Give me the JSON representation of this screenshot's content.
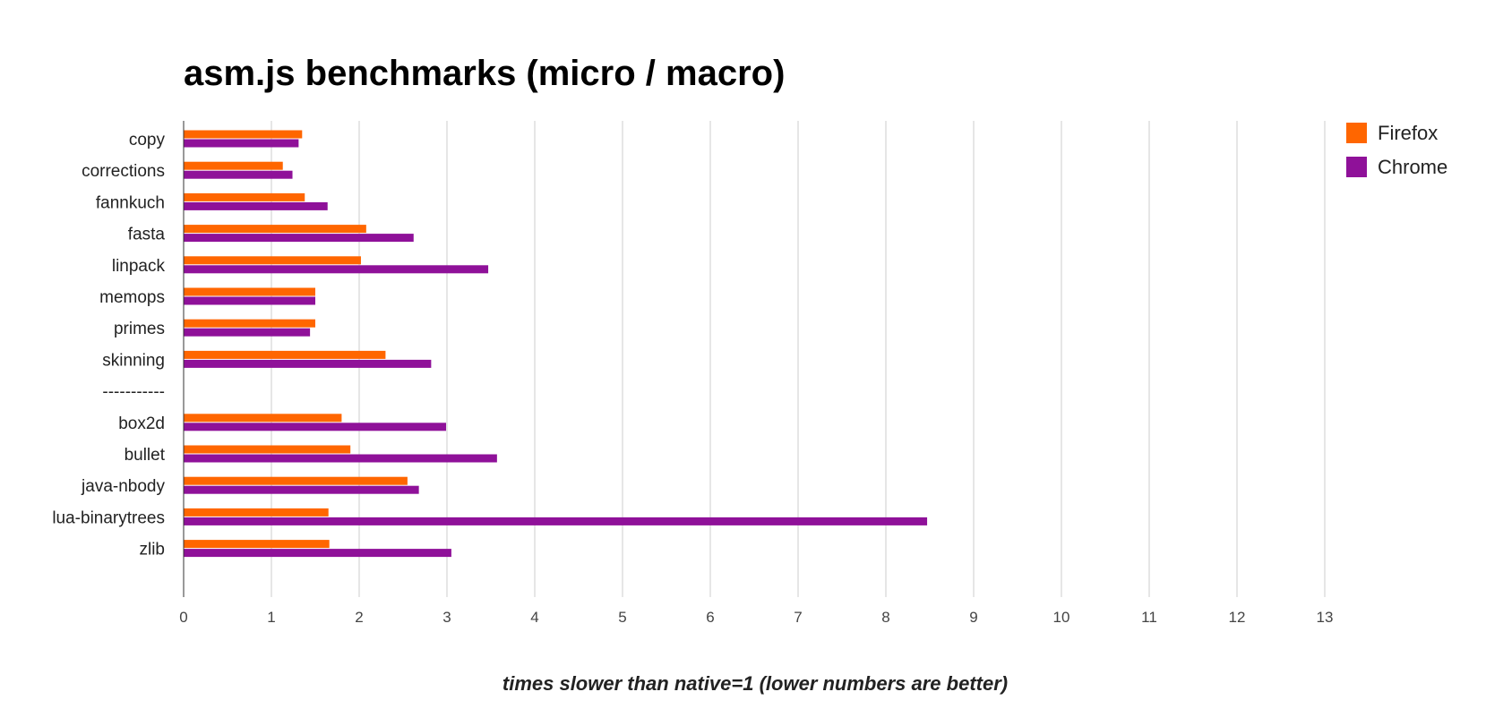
{
  "chart_data": {
    "type": "bar",
    "orientation": "horizontal",
    "title": "asm.js benchmarks (micro / macro)",
    "xlabel": "times slower than native=1 (lower numbers are better)",
    "ylabel": "",
    "xlim": [
      0,
      13
    ],
    "x_ticks": [
      0,
      1,
      2,
      3,
      4,
      5,
      6,
      7,
      8,
      9,
      10,
      11,
      12,
      13
    ],
    "grid": true,
    "legend_position": "top-right",
    "categories": [
      "copy",
      "corrections",
      "fannkuch",
      "fasta",
      "linpack",
      "memops",
      "primes",
      "skinning",
      "-----------",
      "box2d",
      "bullet",
      "java-nbody",
      "lua-binarytrees",
      "zlib"
    ],
    "series": [
      {
        "name": "Firefox",
        "color": "#ff6600",
        "values": [
          1.35,
          1.13,
          1.38,
          2.08,
          2.02,
          1.5,
          1.5,
          2.3,
          null,
          1.8,
          1.9,
          2.55,
          1.65,
          1.66
        ]
      },
      {
        "name": "Chrome",
        "color": "#8f1199",
        "values": [
          1.31,
          1.24,
          1.64,
          2.62,
          3.47,
          1.5,
          1.44,
          2.82,
          null,
          2.99,
          3.57,
          2.68,
          8.47,
          3.05
        ]
      }
    ]
  }
}
